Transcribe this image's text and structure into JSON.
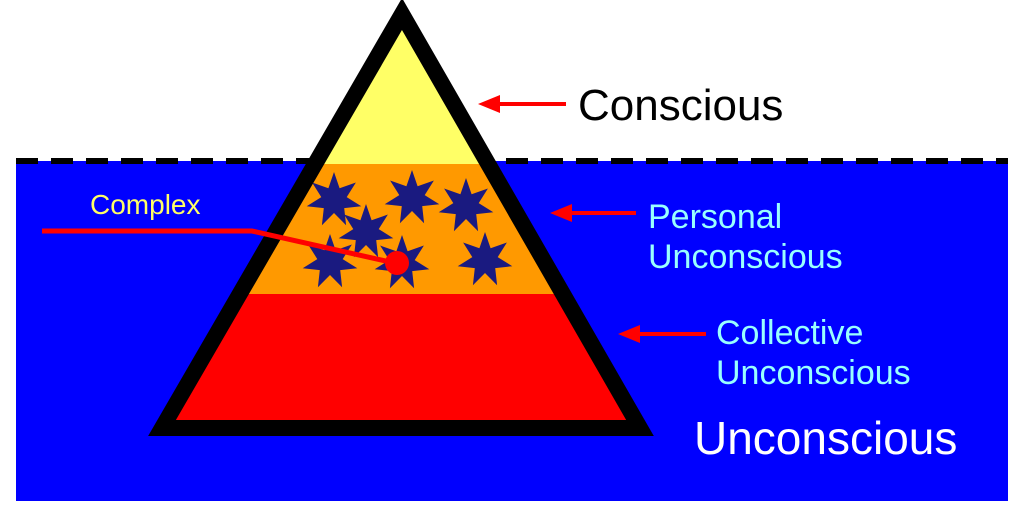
{
  "labels": {
    "conscious": "Conscious",
    "personal_line1": "Personal",
    "personal_line2": "Unconscious",
    "collective_line1": "Collective",
    "collective_line2": "Unconscious",
    "unconscious": "Unconscious",
    "complex": "Complex"
  },
  "colors": {
    "water": "#0000ff",
    "conscious_layer": "#ffff66",
    "personal_layer": "#ff9900",
    "collective_layer": "#ff0000",
    "star": "#1a1a80",
    "arrow": "#ff0000",
    "conscious_text": "#000000",
    "personal_text": "#99ffff",
    "unconscious_text": "#ffffff",
    "complex_text": "#ffff66"
  },
  "stars_in_personal_layer": 7
}
